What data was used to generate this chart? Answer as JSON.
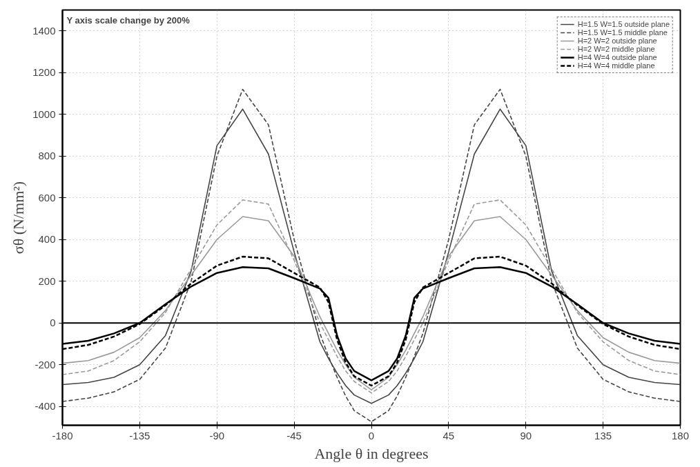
{
  "chart_data": {
    "type": "line",
    "xlabel": "Angle θ in degrees",
    "ylabel": "σθ (N/mm²)",
    "annotations": [
      "Y axis scale change  by 200%"
    ],
    "x": [
      -180,
      -165,
      -150,
      -135,
      -120,
      -105,
      -90,
      -75,
      -60,
      -45,
      -30,
      -25,
      -20,
      -15,
      -10,
      0,
      10,
      15,
      20,
      25,
      30,
      45,
      60,
      75,
      90,
      105,
      120,
      135,
      150,
      165,
      180
    ],
    "series": [
      {
        "name": "H=1.5 W=1.5 outside plane",
        "color": "#444444",
        "line_style": "solid",
        "values": [
          -295,
          -285,
          -260,
          -200,
          -60,
          250,
          850,
          1025,
          810,
          340,
          -90,
          -170,
          -240,
          -300,
          -345,
          -385,
          -345,
          -300,
          -240,
          -170,
          -90,
          340,
          810,
          1025,
          850,
          250,
          -60,
          -200,
          -260,
          -285,
          -295
        ]
      },
      {
        "name": "H=1.5 W=1.5 middle plane",
        "color": "#444444",
        "line_style": "dashed",
        "values": [
          -376,
          -360,
          -330,
          -270,
          -120,
          200,
          800,
          1120,
          950,
          400,
          -50,
          -160,
          -260,
          -350,
          -420,
          -473,
          -420,
          -350,
          -260,
          -160,
          -50,
          400,
          950,
          1120,
          800,
          200,
          -120,
          -270,
          -330,
          -360,
          -376
        ]
      },
      {
        "name": "H=2 W=2 outside plane",
        "color": "#999999",
        "line_style": "solid",
        "values": [
          -193,
          -180,
          -140,
          -70,
          60,
          230,
          400,
          510,
          490,
          320,
          30,
          -50,
          -130,
          -200,
          -260,
          -320,
          -260,
          -200,
          -130,
          -50,
          30,
          320,
          490,
          510,
          400,
          230,
          60,
          -70,
          -140,
          -180,
          -193
        ]
      },
      {
        "name": "H=2 W=2 middle plane",
        "color": "#999999",
        "line_style": "dashed",
        "values": [
          -247,
          -230,
          -180,
          -90,
          50,
          260,
          470,
          590,
          570,
          300,
          0,
          -80,
          -160,
          -230,
          -280,
          -335,
          -280,
          -230,
          -160,
          -80,
          0,
          300,
          570,
          590,
          470,
          260,
          50,
          -90,
          -180,
          -230,
          -247
        ]
      },
      {
        "name": "H=4 W=4 outside plane",
        "color": "#000000",
        "line_style": "solid",
        "values": [
          -100,
          -85,
          -50,
          0,
          90,
          175,
          240,
          268,
          262,
          215,
          165,
          120,
          -60,
          -170,
          -230,
          -275,
          -230,
          -170,
          -60,
          120,
          165,
          215,
          262,
          268,
          240,
          175,
          90,
          0,
          -50,
          -85,
          -100
        ]
      },
      {
        "name": "H=4 W=4 middle plane",
        "color": "#000000",
        "line_style": "dashed",
        "values": [
          -125,
          -105,
          -65,
          -5,
          85,
          190,
          275,
          318,
          310,
          240,
          170,
          100,
          -80,
          -190,
          -255,
          -300,
          -255,
          -190,
          -80,
          100,
          170,
          240,
          310,
          318,
          275,
          190,
          85,
          -5,
          -65,
          -105,
          -125
        ]
      }
    ],
    "xlim": [
      -180,
      180
    ],
    "xticks": [
      -180,
      -135,
      -90,
      -45,
      0,
      45,
      90,
      135,
      180
    ],
    "ylim": [
      -490,
      1500
    ],
    "yticks": [
      -400,
      -200,
      0,
      200,
      400,
      600,
      800,
      1000,
      1200,
      1400
    ],
    "ref_lines": [
      {
        "axis": "y",
        "value": 0,
        "color": "#000000"
      }
    ],
    "grid": true,
    "legend": "top right"
  }
}
